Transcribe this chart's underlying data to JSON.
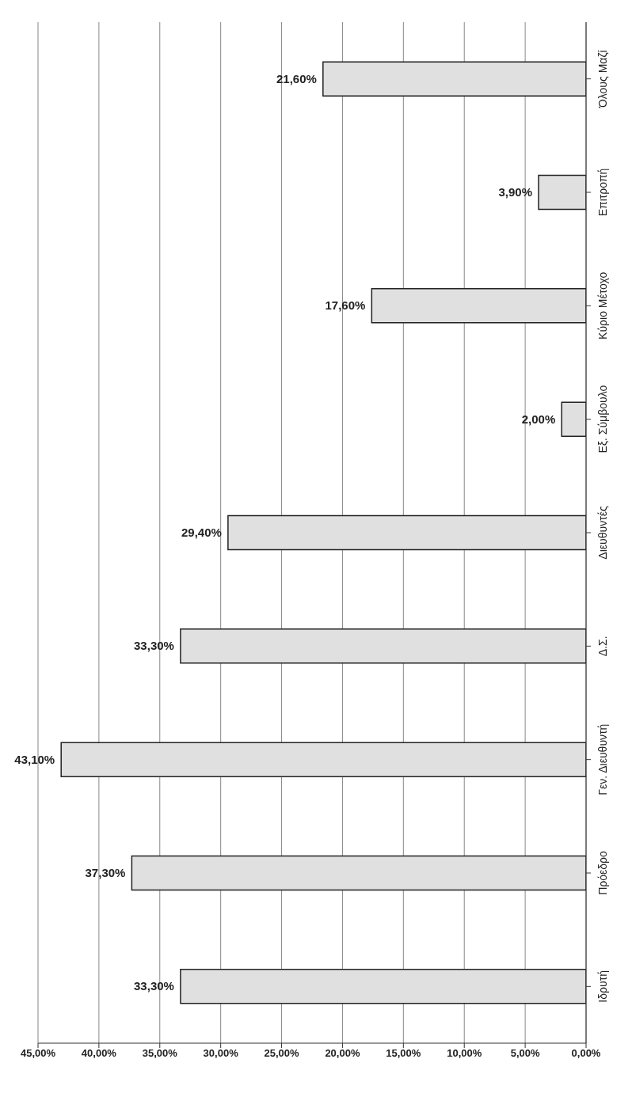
{
  "chart_data": {
    "type": "bar",
    "orientation": "horizontal",
    "categories": [
      "Όλους Μαζί",
      "Επιτροπή",
      "Κύριο Μέτοχο",
      "Εξ. Σύμβουλο",
      "Διευθυντές",
      "Δ.Σ.",
      "Γεν. Διευθυντή",
      "Πρόεδρο",
      "Ιδρυτή"
    ],
    "values": [
      21.6,
      3.9,
      17.6,
      2.0,
      29.4,
      33.3,
      43.1,
      37.3,
      33.3
    ],
    "value_labels": [
      "21,60%",
      "3,90%",
      "17,60%",
      "2,00%",
      "29,40%",
      "33,30%",
      "43,10%",
      "37,30%",
      "33,30%"
    ],
    "color": "#e0e0e0",
    "xlim": [
      45,
      0
    ],
    "xticks": [
      {
        "value": 0,
        "label": "0,00%"
      },
      {
        "value": 5,
        "label": "5,00%"
      },
      {
        "value": 10,
        "label": "10,00%"
      },
      {
        "value": 15,
        "label": "15,00%"
      },
      {
        "value": 20,
        "label": "20,00%"
      },
      {
        "value": 25,
        "label": "25,00%"
      },
      {
        "value": 30,
        "label": "30,00%"
      },
      {
        "value": 35,
        "label": "35,00%"
      },
      {
        "value": 40,
        "label": "40,00%"
      },
      {
        "value": 45,
        "label": "45,00%"
      }
    ],
    "grid": "x"
  }
}
